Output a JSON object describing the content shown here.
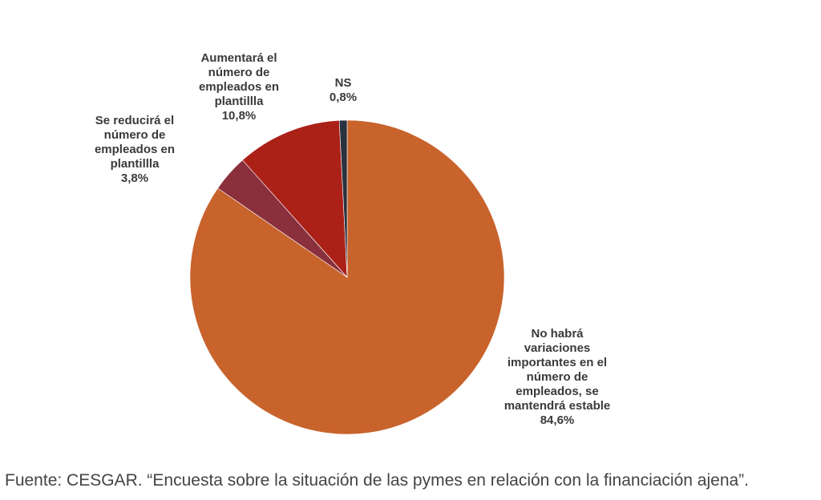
{
  "chart_data": {
    "type": "pie",
    "slices": [
      {
        "label_lines": [
          "No habrá",
          "variaciones",
          "importantes en el",
          "número de",
          "empleados, se",
          "mantendrá estable"
        ],
        "value_label": "84,6%",
        "value": 84.6,
        "color": "#c8632c"
      },
      {
        "label_lines": [
          "Se reducirá el",
          "número de",
          "empleados en",
          "plantillla"
        ],
        "value_label": "3,8%",
        "value": 3.8,
        "color": "#8a2f3c"
      },
      {
        "label_lines": [
          "Aumentará el",
          "número de",
          "empleados en",
          "plantillla"
        ],
        "value_label": "10,8%",
        "value": 10.8,
        "color": "#ab2118"
      },
      {
        "label_lines": [
          "NS"
        ],
        "value_label": "0,8%",
        "value": 0.8,
        "color": "#2a3140"
      }
    ]
  },
  "source": "Fuente: CESGAR. “Encuesta sobre la situación de las pymes en relación con la financiación ajena”."
}
